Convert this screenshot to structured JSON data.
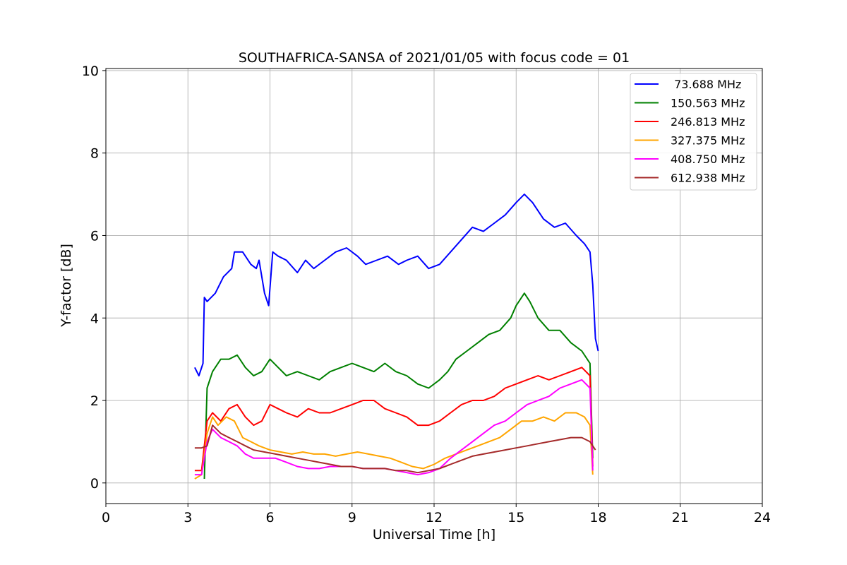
{
  "chart_data": {
    "type": "line",
    "title": "SOUTHAFRICA-SANSA of 2021/01/05 with focus code = 01",
    "xlabel": "Universal Time [h]",
    "ylabel": "Y-factor [dB]",
    "xlim": [
      0,
      24
    ],
    "ylim": [
      -0.5,
      10.05
    ],
    "xticks": [
      0,
      3,
      6,
      9,
      12,
      15,
      18,
      21,
      24
    ],
    "yticks": [
      0,
      2,
      4,
      6,
      8,
      10
    ],
    "grid": true,
    "legend_position": "top-right",
    "series": [
      {
        "name": " 73.688 MHz",
        "color": "#0000ff",
        "x": [
          3.25,
          3.4,
          3.55,
          3.6,
          3.7,
          4.0,
          4.3,
          4.6,
          4.7,
          5.0,
          5.3,
          5.5,
          5.6,
          5.8,
          5.95,
          6.1,
          6.3,
          6.6,
          7.0,
          7.3,
          7.6,
          8.0,
          8.4,
          8.8,
          9.2,
          9.5,
          9.9,
          10.3,
          10.7,
          11.0,
          11.4,
          11.8,
          12.2,
          12.6,
          13.0,
          13.4,
          13.8,
          14.2,
          14.6,
          15.0,
          15.3,
          15.6,
          16.0,
          16.4,
          16.8,
          17.2,
          17.5,
          17.7,
          17.8,
          17.9,
          18.0
        ],
        "y": [
          2.8,
          2.6,
          2.9,
          4.5,
          4.4,
          4.6,
          5.0,
          5.2,
          5.6,
          5.6,
          5.3,
          5.2,
          5.4,
          4.6,
          4.3,
          5.6,
          5.5,
          5.4,
          5.1,
          5.4,
          5.2,
          5.4,
          5.6,
          5.7,
          5.5,
          5.3,
          5.4,
          5.5,
          5.3,
          5.4,
          5.5,
          5.2,
          5.3,
          5.6,
          5.9,
          6.2,
          6.1,
          6.3,
          6.5,
          6.8,
          7.0,
          6.8,
          6.4,
          6.2,
          6.3,
          6.0,
          5.8,
          5.6,
          4.8,
          3.5,
          3.2
        ]
      },
      {
        "name": "150.563 MHz",
        "color": "#008000",
        "x": [
          3.6,
          3.7,
          3.9,
          4.2,
          4.5,
          4.8,
          5.1,
          5.4,
          5.7,
          6.0,
          6.3,
          6.6,
          7.0,
          7.4,
          7.8,
          8.2,
          8.6,
          9.0,
          9.4,
          9.8,
          10.2,
          10.6,
          11.0,
          11.4,
          11.8,
          12.2,
          12.5,
          12.8,
          13.2,
          13.6,
          14.0,
          14.4,
          14.8,
          15.0,
          15.3,
          15.5,
          15.8,
          16.2,
          16.6,
          17.0,
          17.4,
          17.7,
          17.8
        ],
        "y": [
          0.1,
          2.3,
          2.7,
          3.0,
          3.0,
          3.1,
          2.8,
          2.6,
          2.7,
          3.0,
          2.8,
          2.6,
          2.7,
          2.6,
          2.5,
          2.7,
          2.8,
          2.9,
          2.8,
          2.7,
          2.9,
          2.7,
          2.6,
          2.4,
          2.3,
          2.5,
          2.7,
          3.0,
          3.2,
          3.4,
          3.6,
          3.7,
          4.0,
          4.3,
          4.6,
          4.4,
          4.0,
          3.7,
          3.7,
          3.4,
          3.2,
          2.9,
          0.6
        ]
      },
      {
        "name": "246.813 MHz",
        "color": "#ff0000",
        "x": [
          3.25,
          3.5,
          3.7,
          3.9,
          4.2,
          4.5,
          4.8,
          5.1,
          5.4,
          5.7,
          6.0,
          6.3,
          6.6,
          7.0,
          7.4,
          7.8,
          8.2,
          8.6,
          9.0,
          9.4,
          9.8,
          10.2,
          10.6,
          11.0,
          11.4,
          11.8,
          12.2,
          12.6,
          13.0,
          13.4,
          13.8,
          14.2,
          14.6,
          15.0,
          15.4,
          15.8,
          16.2,
          16.6,
          17.0,
          17.4,
          17.7,
          17.8
        ],
        "y": [
          0.3,
          0.3,
          1.5,
          1.7,
          1.5,
          1.8,
          1.9,
          1.6,
          1.4,
          1.5,
          1.9,
          1.8,
          1.7,
          1.6,
          1.8,
          1.7,
          1.7,
          1.8,
          1.9,
          2.0,
          2.0,
          1.8,
          1.7,
          1.6,
          1.4,
          1.4,
          1.5,
          1.7,
          1.9,
          2.0,
          2.0,
          2.1,
          2.3,
          2.4,
          2.5,
          2.6,
          2.5,
          2.6,
          2.7,
          2.8,
          2.6,
          0.4
        ]
      },
      {
        "name": "327.375 MHz",
        "color": "#ffa500",
        "x": [
          3.25,
          3.5,
          3.7,
          3.9,
          4.1,
          4.4,
          4.7,
          5.0,
          5.3,
          5.6,
          6.0,
          6.4,
          6.8,
          7.2,
          7.6,
          8.0,
          8.4,
          8.8,
          9.2,
          9.6,
          10.0,
          10.4,
          10.8,
          11.2,
          11.6,
          12.0,
          12.4,
          12.8,
          13.2,
          13.6,
          14.0,
          14.4,
          14.8,
          15.2,
          15.6,
          16.0,
          16.4,
          16.8,
          17.2,
          17.5,
          17.7,
          17.8
        ],
        "y": [
          0.1,
          0.2,
          1.2,
          1.6,
          1.4,
          1.6,
          1.5,
          1.1,
          1.0,
          0.9,
          0.8,
          0.75,
          0.7,
          0.75,
          0.7,
          0.7,
          0.65,
          0.7,
          0.75,
          0.7,
          0.65,
          0.6,
          0.5,
          0.4,
          0.35,
          0.45,
          0.6,
          0.7,
          0.8,
          0.9,
          1.0,
          1.1,
          1.3,
          1.5,
          1.5,
          1.6,
          1.5,
          1.7,
          1.7,
          1.6,
          1.4,
          0.2
        ]
      },
      {
        "name": "408.750 MHz",
        "color": "#ff00ff",
        "x": [
          3.25,
          3.5,
          3.7,
          3.9,
          4.2,
          4.5,
          4.8,
          5.1,
          5.4,
          5.8,
          6.2,
          6.6,
          7.0,
          7.4,
          7.8,
          8.2,
          8.6,
          9.0,
          9.4,
          9.8,
          10.2,
          10.6,
          11.0,
          11.4,
          11.8,
          12.2,
          12.6,
          13.0,
          13.4,
          13.8,
          14.2,
          14.6,
          15.0,
          15.4,
          15.8,
          16.2,
          16.6,
          17.0,
          17.4,
          17.7,
          17.8
        ],
        "y": [
          0.2,
          0.2,
          1.0,
          1.3,
          1.1,
          1.0,
          0.9,
          0.7,
          0.6,
          0.6,
          0.6,
          0.5,
          0.4,
          0.35,
          0.35,
          0.4,
          0.4,
          0.4,
          0.35,
          0.35,
          0.35,
          0.3,
          0.25,
          0.2,
          0.25,
          0.35,
          0.6,
          0.8,
          1.0,
          1.2,
          1.4,
          1.5,
          1.7,
          1.9,
          2.0,
          2.1,
          2.3,
          2.4,
          2.5,
          2.3,
          0.3
        ]
      },
      {
        "name": "612.938 MHz",
        "color": "#a52a2a",
        "x": [
          3.25,
          3.5,
          3.7,
          3.9,
          4.2,
          4.5,
          4.8,
          5.1,
          5.4,
          5.8,
          6.2,
          6.6,
          7.0,
          7.4,
          7.8,
          8.2,
          8.6,
          9.0,
          9.4,
          9.8,
          10.2,
          10.6,
          11.0,
          11.4,
          11.8,
          12.2,
          12.6,
          13.0,
          13.4,
          13.8,
          14.2,
          14.6,
          15.0,
          15.4,
          15.8,
          16.2,
          16.6,
          17.0,
          17.4,
          17.7,
          17.9
        ],
        "y": [
          0.85,
          0.85,
          0.9,
          1.4,
          1.2,
          1.1,
          1.0,
          0.9,
          0.8,
          0.75,
          0.7,
          0.65,
          0.6,
          0.55,
          0.5,
          0.45,
          0.4,
          0.4,
          0.35,
          0.35,
          0.35,
          0.3,
          0.3,
          0.25,
          0.3,
          0.35,
          0.45,
          0.55,
          0.65,
          0.7,
          0.75,
          0.8,
          0.85,
          0.9,
          0.95,
          1.0,
          1.05,
          1.1,
          1.1,
          1.0,
          0.8
        ]
      }
    ]
  }
}
